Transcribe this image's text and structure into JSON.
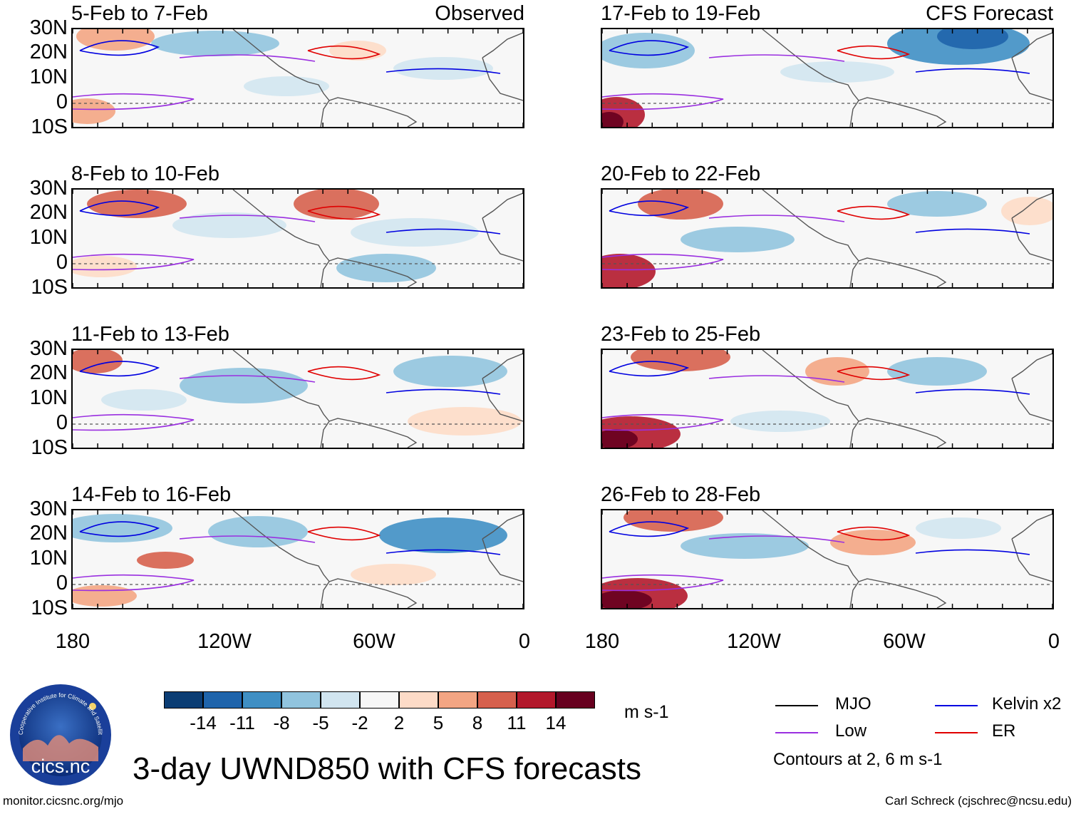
{
  "figure_title": "3-day UWND850 with CFS forecasts",
  "left_column_label": "Observed",
  "right_column_label": "CFS Forecast",
  "observed_panels": [
    {
      "title": "5-Feb to 7-Feb"
    },
    {
      "title": "8-Feb to 10-Feb"
    },
    {
      "title": "11-Feb to 13-Feb"
    },
    {
      "title": "14-Feb to 16-Feb"
    }
  ],
  "forecast_panels": [
    {
      "title": "17-Feb to 19-Feb"
    },
    {
      "title": "20-Feb to 22-Feb"
    },
    {
      "title": "23-Feb to 25-Feb"
    },
    {
      "title": "26-Feb to 28-Feb"
    }
  ],
  "y_axis_labels": [
    "30N",
    "20N",
    "10N",
    "0",
    "10S"
  ],
  "x_axis_labels": [
    "180",
    "120W",
    "60W",
    "0"
  ],
  "colorbar": {
    "units": "m s-1",
    "tick_labels": [
      "-14",
      "-11",
      "-8",
      "-5",
      "-2",
      "2",
      "5",
      "8",
      "11",
      "14"
    ],
    "colors": [
      "#0b3d74",
      "#1f64ab",
      "#3f8fc4",
      "#91c4de",
      "#d1e5f0",
      "#f7f7f7",
      "#fddbc7",
      "#f3a583",
      "#d6604d",
      "#b2182b",
      "#67001f"
    ]
  },
  "legend": {
    "items": [
      {
        "label": "MJO",
        "color": "#000000"
      },
      {
        "label": "Kelvin x2",
        "color": "#0000e0"
      },
      {
        "label": "Low",
        "color": "#9a2fe0"
      },
      {
        "label": "ER",
        "color": "#e00000"
      }
    ],
    "note": "Contours at 2, 6 m s-1"
  },
  "logo": {
    "text": "cics.nc",
    "ring_text": "Cooperative Institute for Climate and Satellites"
  },
  "footer_left": "monitor.cicsnc.org/mjo",
  "footer_right": "Carl Schreck (cjschrec@ncsu.edu)"
}
